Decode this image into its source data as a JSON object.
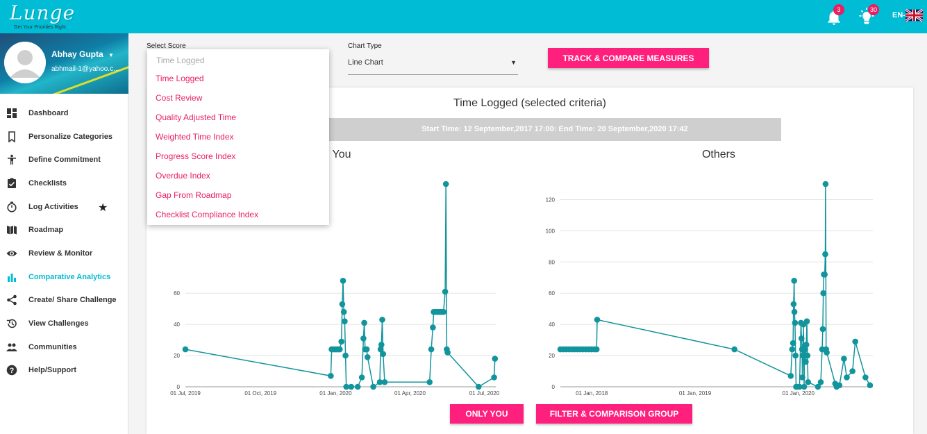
{
  "header": {
    "logo_text": "Lunge",
    "logo_tagline": "Get Your Priorities Right.",
    "notifications_count": "3",
    "ideas_count": "30",
    "language": "EN-"
  },
  "sidebar": {
    "user_name": "Abhay Gupta",
    "user_email": "abhmail-1@yahoo.c...",
    "items": [
      {
        "label": "Dashboard",
        "icon": "dashboard-icon"
      },
      {
        "label": "Personalize Categories",
        "icon": "bookmark-icon"
      },
      {
        "label": "Define Commitment",
        "icon": "person-icon"
      },
      {
        "label": "Checklists",
        "icon": "clipboard-check-icon"
      },
      {
        "label": "Log Activities",
        "icon": "stopwatch-icon"
      },
      {
        "label": "Roadmap",
        "icon": "map-icon"
      },
      {
        "label": "Review & Monitor",
        "icon": "eye-icon"
      },
      {
        "label": "Comparative Analytics",
        "icon": "bar-chart-icon"
      },
      {
        "label": "Create/ Share Challenge",
        "icon": "share-icon"
      },
      {
        "label": "View Challenges",
        "icon": "history-icon"
      },
      {
        "label": "Communities",
        "icon": "people-icon"
      },
      {
        "label": "Help/Support",
        "icon": "help-icon"
      }
    ],
    "active_index": 7
  },
  "controls": {
    "select_score_label": "Select Score",
    "select_score_value": "Time Logged",
    "score_options": [
      "Time Logged",
      "Cost Review",
      "Quality Adjusted Time",
      "Weighted Time Index",
      "Progress Score Index",
      "Overdue Index",
      "Gap From Roadmap",
      "Checklist Compliance Index"
    ],
    "chart_type_label": "Chart Type",
    "chart_type_value": "Line Chart",
    "track_button": "TRACK & COMPARE MEASURES",
    "only_you_button": "ONLY YOU",
    "filter_button": "FILTER & COMPARISON GROUP"
  },
  "main": {
    "title": "Time Logged (selected criteria)",
    "time_range": "Start Time: 12 September,2017 17:00: End Time: 20 September,2020 17:42"
  },
  "colors": {
    "accent": "#00bcd4",
    "pink": "#ff1f7d",
    "series": "#12949c"
  },
  "chart_data": [
    {
      "type": "line",
      "title": "You",
      "x_ticks": [
        "01 Jul, 2019",
        "01 Oct, 2019",
        "01 Jan, 2020",
        "01 Apr, 2020",
        "01 Jul, 2020"
      ],
      "y_ticks": [
        0,
        20,
        40,
        60
      ],
      "xlim": [
        "2019-07-01",
        "2020-07-15"
      ],
      "ylim": [
        0,
        130
      ],
      "grid": true,
      "series": [
        {
          "points": [
            [
              "2019-07-01",
              24
            ],
            [
              "2019-12-26",
              7
            ],
            [
              "2019-12-27",
              24
            ],
            [
              "2019-12-29",
              24
            ],
            [
              "2019-12-31",
              24
            ],
            [
              "2020-01-02",
              24
            ],
            [
              "2020-01-04",
              24
            ],
            [
              "2020-01-06",
              24
            ],
            [
              "2020-01-08",
              29
            ],
            [
              "2020-01-09",
              53
            ],
            [
              "2020-01-10",
              68
            ],
            [
              "2020-01-11",
              48
            ],
            [
              "2020-01-12",
              42
            ],
            [
              "2020-01-13",
              20
            ],
            [
              "2020-01-14",
              0
            ],
            [
              "2020-01-20",
              0
            ],
            [
              "2020-01-28",
              0
            ],
            [
              "2020-02-02",
              6
            ],
            [
              "2020-02-04",
              31
            ],
            [
              "2020-02-05",
              41
            ],
            [
              "2020-02-06",
              24
            ],
            [
              "2020-02-08",
              24
            ],
            [
              "2020-02-09",
              19
            ],
            [
              "2020-02-16",
              0
            ],
            [
              "2020-02-24",
              3
            ],
            [
              "2020-02-25",
              24
            ],
            [
              "2020-02-26",
              27
            ],
            [
              "2020-02-27",
              43
            ],
            [
              "2020-02-28",
              21
            ],
            [
              "2020-03-01",
              3
            ],
            [
              "2020-04-25",
              3
            ],
            [
              "2020-04-27",
              24
            ],
            [
              "2020-04-29",
              38
            ],
            [
              "2020-04-30",
              48
            ],
            [
              "2020-05-02",
              48
            ],
            [
              "2020-05-04",
              48
            ],
            [
              "2020-05-06",
              48
            ],
            [
              "2020-05-08",
              48
            ],
            [
              "2020-05-10",
              48
            ],
            [
              "2020-05-12",
              48
            ],
            [
              "2020-05-14",
              61
            ],
            [
              "2020-05-15",
              130
            ],
            [
              "2020-05-16",
              24
            ],
            [
              "2020-05-17",
              22
            ],
            [
              "2020-06-24",
              0
            ],
            [
              "2020-07-13",
              6
            ],
            [
              "2020-07-14",
              18
            ]
          ]
        }
      ]
    },
    {
      "type": "line",
      "title": "Others",
      "x_ticks": [
        "01 Jan, 2018",
        "01 Jan, 2019",
        "01 Jan, 2020"
      ],
      "y_ticks": [
        0,
        20,
        40,
        60,
        80,
        100,
        120
      ],
      "xlim": [
        "2017-09-12",
        "2020-09-20"
      ],
      "ylim": [
        0,
        130
      ],
      "grid": true,
      "series": [
        {
          "points": [
            [
              "2017-09-12",
              24
            ],
            [
              "2017-09-22",
              24
            ],
            [
              "2017-10-02",
              24
            ],
            [
              "2017-10-12",
              24
            ],
            [
              "2017-10-22",
              24
            ],
            [
              "2017-11-01",
              24
            ],
            [
              "2017-11-11",
              24
            ],
            [
              "2017-11-21",
              24
            ],
            [
              "2017-12-01",
              24
            ],
            [
              "2017-12-11",
              24
            ],
            [
              "2017-12-21",
              24
            ],
            [
              "2017-12-31",
              24
            ],
            [
              "2018-01-10",
              24
            ],
            [
              "2018-01-18",
              24
            ],
            [
              "2018-01-20",
              43
            ],
            [
              "2019-05-20",
              24
            ],
            [
              "2019-12-05",
              7
            ],
            [
              "2019-12-10",
              24
            ],
            [
              "2019-12-13",
              28
            ],
            [
              "2019-12-15",
              53
            ],
            [
              "2019-12-17",
              68
            ],
            [
              "2019-12-18",
              48
            ],
            [
              "2019-12-20",
              41
            ],
            [
              "2019-12-22",
              20
            ],
            [
              "2019-12-24",
              0
            ],
            [
              "2019-12-27",
              0
            ],
            [
              "2020-01-05",
              0
            ],
            [
              "2020-01-10",
              41
            ],
            [
              "2020-01-12",
              31
            ],
            [
              "2020-01-14",
              24
            ],
            [
              "2020-01-15",
              6
            ],
            [
              "2020-01-17",
              20
            ],
            [
              "2020-01-19",
              40
            ],
            [
              "2020-01-21",
              0
            ],
            [
              "2020-01-23",
              26
            ],
            [
              "2020-01-25",
              24
            ],
            [
              "2020-01-27",
              16
            ],
            [
              "2020-01-29",
              27
            ],
            [
              "2020-01-31",
              42
            ],
            [
              "2020-02-02",
              20
            ],
            [
              "2020-02-04",
              3
            ],
            [
              "2020-03-10",
              0
            ],
            [
              "2020-03-20",
              3
            ],
            [
              "2020-03-25",
              24
            ],
            [
              "2020-03-27",
              37
            ],
            [
              "2020-03-29",
              60
            ],
            [
              "2020-03-31",
              72
            ],
            [
              "2020-04-03",
              72
            ],
            [
              "2020-04-05",
              85
            ],
            [
              "2020-04-06",
              130
            ],
            [
              "2020-04-08",
              24
            ],
            [
              "2020-04-10",
              22
            ],
            [
              "2020-05-10",
              2
            ],
            [
              "2020-05-15",
              0
            ],
            [
              "2020-05-25",
              1
            ],
            [
              "2020-06-10",
              18
            ],
            [
              "2020-06-20",
              6
            ],
            [
              "2020-07-10",
              10
            ],
            [
              "2020-07-20",
              29
            ],
            [
              "2020-08-25",
              6
            ],
            [
              "2020-09-10",
              1
            ]
          ]
        }
      ]
    }
  ]
}
